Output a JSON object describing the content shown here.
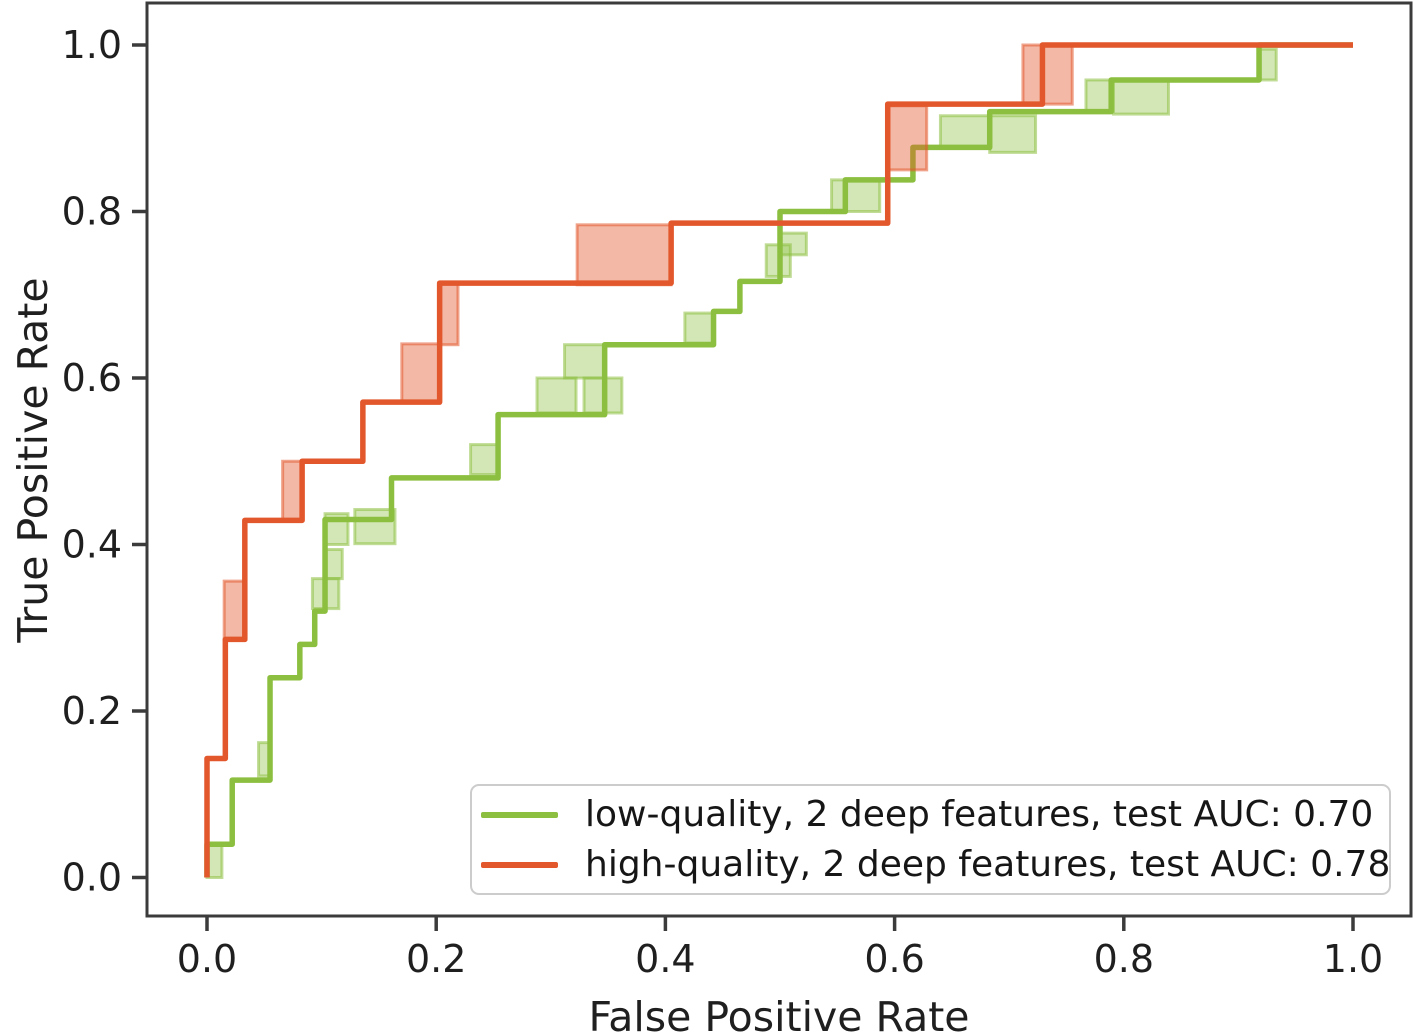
{
  "figure": {
    "xlabel": "False Positive Rate",
    "ylabel": "True Positive Rate"
  },
  "legend": {
    "items": [
      {
        "label": "low-quality, 2 deep features, test AUC: 0.70",
        "color": "#8cbf3f"
      },
      {
        "label": "high-quality, 2 deep features, test AUC: 0.78",
        "color": "#e2572b"
      }
    ]
  },
  "chart_data": {
    "type": "line",
    "subtype": "roc-step-curves",
    "title": "",
    "xlabel": "False Positive Rate",
    "ylabel": "True Positive Rate",
    "xlim": [
      -0.05,
      1.05
    ],
    "ylim": [
      -0.05,
      1.05
    ],
    "grid": false,
    "legend_position": "lower right",
    "x_tick_values": [
      0.0,
      0.2,
      0.4,
      0.6,
      0.8,
      1.0
    ],
    "x_tick_labels": [
      "0.0",
      "0.2",
      "0.4",
      "0.6",
      "0.8",
      "1.0"
    ],
    "y_tick_values": [
      0.0,
      0.2,
      0.4,
      0.6,
      0.8,
      1.0
    ],
    "y_tick_labels": [
      "0.0",
      "0.2",
      "0.4",
      "0.6",
      "0.8",
      "1.0"
    ],
    "series": [
      {
        "id": "low-quality",
        "name": "low-quality, 2 deep features, test AUC: 0.70",
        "auc": 0.7,
        "color": "#8cbf3f",
        "band_fill": "rgba(140,191,63,0.38)",
        "band_stroke": "rgba(140,191,63,0.55)",
        "points": [
          [
            0.0,
            0.0
          ],
          [
            0.0,
            0.04
          ],
          [
            0.022,
            0.04
          ],
          [
            0.022,
            0.117
          ],
          [
            0.055,
            0.117
          ],
          [
            0.055,
            0.24
          ],
          [
            0.081,
            0.24
          ],
          [
            0.081,
            0.28
          ],
          [
            0.094,
            0.28
          ],
          [
            0.094,
            0.32
          ],
          [
            0.103,
            0.32
          ],
          [
            0.103,
            0.43
          ],
          [
            0.161,
            0.43
          ],
          [
            0.161,
            0.48
          ],
          [
            0.254,
            0.48
          ],
          [
            0.254,
            0.556
          ],
          [
            0.347,
            0.556
          ],
          [
            0.347,
            0.64
          ],
          [
            0.442,
            0.64
          ],
          [
            0.442,
            0.68
          ],
          [
            0.465,
            0.68
          ],
          [
            0.465,
            0.716
          ],
          [
            0.5,
            0.716
          ],
          [
            0.5,
            0.8
          ],
          [
            0.557,
            0.8
          ],
          [
            0.557,
            0.838
          ],
          [
            0.616,
            0.838
          ],
          [
            0.616,
            0.877
          ],
          [
            0.683,
            0.877
          ],
          [
            0.683,
            0.92
          ],
          [
            0.789,
            0.92
          ],
          [
            0.789,
            0.958
          ],
          [
            0.918,
            0.958
          ],
          [
            0.918,
            1.0
          ],
          [
            1.0,
            1.0
          ]
        ],
        "band_patches": [
          [
            0.0,
            0.0,
            0.013,
            0.04
          ],
          [
            0.045,
            0.122,
            0.01,
            0.04
          ],
          [
            0.092,
            0.323,
            0.023,
            0.036
          ],
          [
            0.104,
            0.359,
            0.014,
            0.035
          ],
          [
            0.103,
            0.4,
            0.02,
            0.037
          ],
          [
            0.129,
            0.401,
            0.035,
            0.041
          ],
          [
            0.23,
            0.484,
            0.024,
            0.036
          ],
          [
            0.288,
            0.558,
            0.034,
            0.042
          ],
          [
            0.312,
            0.6,
            0.035,
            0.04
          ],
          [
            0.329,
            0.558,
            0.033,
            0.042
          ],
          [
            0.417,
            0.642,
            0.025,
            0.036
          ],
          [
            0.488,
            0.722,
            0.021,
            0.038
          ],
          [
            0.5,
            0.748,
            0.023,
            0.026
          ],
          [
            0.545,
            0.8,
            0.042,
            0.038
          ],
          [
            0.64,
            0.877,
            0.043,
            0.038
          ],
          [
            0.683,
            0.871,
            0.04,
            0.044
          ],
          [
            0.767,
            0.92,
            0.022,
            0.038
          ],
          [
            0.791,
            0.917,
            0.048,
            0.04
          ],
          [
            0.919,
            0.958,
            0.014,
            0.037
          ]
        ]
      },
      {
        "id": "high-quality",
        "name": "high-quality, 2 deep features, test AUC: 0.78",
        "auc": 0.78,
        "color": "#e2572b",
        "band_fill": "rgba(226,87,43,0.42)",
        "band_stroke": "rgba(226,87,43,0.55)",
        "points": [
          [
            0.0,
            0.0
          ],
          [
            0.0,
            0.143
          ],
          [
            0.016,
            0.143
          ],
          [
            0.016,
            0.286
          ],
          [
            0.033,
            0.286
          ],
          [
            0.033,
            0.429
          ],
          [
            0.083,
            0.429
          ],
          [
            0.083,
            0.5
          ],
          [
            0.136,
            0.5
          ],
          [
            0.136,
            0.571
          ],
          [
            0.203,
            0.571
          ],
          [
            0.203,
            0.714
          ],
          [
            0.405,
            0.714
          ],
          [
            0.405,
            0.786
          ],
          [
            0.594,
            0.786
          ],
          [
            0.594,
            0.929
          ],
          [
            0.729,
            0.929
          ],
          [
            0.729,
            1.0
          ],
          [
            1.0,
            1.0
          ]
        ],
        "band_patches": [
          [
            0.015,
            0.286,
            0.019,
            0.07
          ],
          [
            0.066,
            0.429,
            0.016,
            0.071
          ],
          [
            0.17,
            0.571,
            0.033,
            0.07
          ],
          [
            0.203,
            0.64,
            0.016,
            0.074
          ],
          [
            0.323,
            0.712,
            0.082,
            0.072
          ],
          [
            0.594,
            0.85,
            0.034,
            0.077
          ],
          [
            0.712,
            0.929,
            0.043,
            0.071
          ]
        ]
      }
    ]
  },
  "style": {
    "spine_color": "#3b3b3b",
    "tick_color": "#3b3b3b",
    "tick_label_color": "#1f1f1f",
    "line_width": 5.5
  }
}
